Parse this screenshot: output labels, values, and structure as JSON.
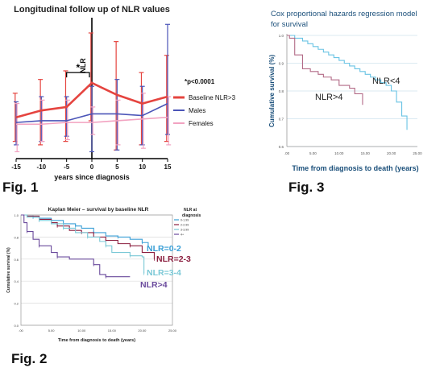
{
  "fig1": {
    "caption": "Fig. 1",
    "chart_data": {
      "type": "line",
      "title": "Longitudinal follow up of NLR values",
      "xlabel": "years since diagnosis",
      "ylabel": "NLR",
      "x": [
        -15,
        -10,
        -5,
        0,
        5,
        10,
        15
      ],
      "xticks": [
        "-15",
        "-10",
        "-5",
        "0",
        "5",
        "10",
        "15"
      ],
      "xlim": [
        -15,
        15
      ],
      "ylim": [
        0,
        8
      ],
      "series": [
        {
          "name": "Baseline NLR>3",
          "color": "#e5443f",
          "values": [
            2.4,
            2.8,
            3.0,
            4.4,
            3.7,
            3.2,
            3.6
          ],
          "lower": [
            1.0,
            0.8,
            1.0,
            2.2,
            0.5,
            0.8,
            1.0
          ],
          "upper": [
            3.8,
            4.6,
            5.1,
            7.3,
            6.8,
            5.0,
            6.0
          ]
        },
        {
          "name": "Males",
          "color": "#4b55b8",
          "values": [
            2.1,
            2.2,
            2.2,
            2.6,
            2.6,
            2.5,
            3.2
          ],
          "lower": [
            0.8,
            1.0,
            1.3,
            0.4,
            0.5,
            0.8,
            1.4
          ],
          "upper": [
            3.3,
            3.6,
            3.6,
            4.2,
            4.6,
            4.2,
            7.8
          ]
        },
        {
          "name": "Females",
          "color": "#f2a3c1",
          "values": [
            2.0,
            2.0,
            2.1,
            2.1,
            2.2,
            2.3,
            2.4
          ],
          "lower": [
            0.4,
            1.0,
            1.1,
            1.4,
            0.8,
            0.6,
            0.8
          ],
          "upper": [
            3.2,
            3.4,
            3.4,
            3.0,
            3.4,
            3.8,
            3.6
          ]
        }
      ],
      "annotations": [
        "*",
        "*p<0.0001"
      ]
    }
  },
  "fig3": {
    "caption": "Fig. 3",
    "chart_data": {
      "type": "line",
      "title": "Cox proportional hazards regression model for survival",
      "xlabel": "Time from diagnosis to death (years)",
      "ylabel": "Cumulative survival (%)",
      "xticks": [
        ".00",
        "5.00",
        "10.00",
        "15.00",
        "20.00",
        "25.00"
      ],
      "yticks": [
        "1.0",
        "0.9",
        "0.8",
        "0.7",
        "0.6"
      ],
      "xlim": [
        0,
        25
      ],
      "ylim": [
        0.6,
        1.0
      ],
      "series": [
        {
          "name": "NLR<4",
          "color": "#69c3e4",
          "points": [
            [
              0,
              1.0
            ],
            [
              1,
              1.0
            ],
            [
              1.5,
              0.99
            ],
            [
              3,
              0.98
            ],
            [
              4,
              0.97
            ],
            [
              5,
              0.96
            ],
            [
              6,
              0.95
            ],
            [
              7,
              0.94
            ],
            [
              8,
              0.93
            ],
            [
              9,
              0.92
            ],
            [
              10,
              0.91
            ],
            [
              11,
              0.9
            ],
            [
              12,
              0.89
            ],
            [
              13,
              0.88
            ],
            [
              14,
              0.87
            ],
            [
              15,
              0.86
            ],
            [
              16,
              0.85
            ],
            [
              17,
              0.84
            ],
            [
              18,
              0.83
            ],
            [
              19,
              0.82
            ],
            [
              20,
              0.8
            ],
            [
              21,
              0.76
            ],
            [
              22,
              0.71
            ],
            [
              23,
              0.66
            ]
          ]
        },
        {
          "name": "NLR>4",
          "color": "#b26a86",
          "points": [
            [
              0,
              1.0
            ],
            [
              0.5,
              0.99
            ],
            [
              1.5,
              0.93
            ],
            [
              3,
              0.88
            ],
            [
              4.5,
              0.87
            ],
            [
              6,
              0.86
            ],
            [
              7,
              0.85
            ],
            [
              8.5,
              0.84
            ],
            [
              10,
              0.82
            ],
            [
              12,
              0.81
            ],
            [
              13,
              0.79
            ],
            [
              14.5,
              0.75
            ]
          ]
        }
      ]
    }
  },
  "fig2": {
    "caption": "Fig. 2",
    "chart_data": {
      "type": "line",
      "title": "Kaplan Meier – survival by baseline NLR",
      "xlabel": "Time from diagnosis to death (years)",
      "ylabel": "Cumulative survival (%)",
      "legend_title": "NLR at diagnosis",
      "xticks": [
        ".00",
        "5.00",
        "10.00",
        "15.00",
        "20.00",
        "25.00"
      ],
      "yticks": [
        "1.0",
        "0.8",
        "0.6",
        "0.4",
        "0.2",
        "0.0"
      ],
      "xlim": [
        0,
        25
      ],
      "ylim": [
        0,
        1.0
      ],
      "series": [
        {
          "name": "NLR=0-2",
          "legend": "0-1.99",
          "color": "#3a9fd6",
          "points": [
            [
              0,
              1.0
            ],
            [
              1,
              0.99
            ],
            [
              2,
              0.98
            ],
            [
              3,
              0.97
            ],
            [
              5,
              0.95
            ],
            [
              7,
              0.92
            ],
            [
              9,
              0.9
            ],
            [
              10,
              0.88
            ],
            [
              12,
              0.84
            ],
            [
              14,
              0.81
            ],
            [
              16,
              0.8
            ],
            [
              18,
              0.78
            ],
            [
              20,
              0.75
            ],
            [
              21,
              0.72
            ]
          ]
        },
        {
          "name": "NLR=2-3",
          "legend": "2-2.99",
          "color": "#8b1e3f",
          "points": [
            [
              0,
              1.0
            ],
            [
              1,
              0.99
            ],
            [
              3,
              0.96
            ],
            [
              5,
              0.93
            ],
            [
              6,
              0.9
            ],
            [
              8,
              0.86
            ],
            [
              10,
              0.84
            ],
            [
              12,
              0.8
            ],
            [
              14,
              0.77
            ],
            [
              16,
              0.74
            ],
            [
              18,
              0.72
            ],
            [
              20,
              0.66
            ],
            [
              22,
              0.6
            ]
          ]
        },
        {
          "name": "NLR=3-4",
          "legend": "3-3.99",
          "color": "#7ac8d6",
          "points": [
            [
              0,
              1.0
            ],
            [
              1,
              0.98
            ],
            [
              3,
              0.95
            ],
            [
              5,
              0.92
            ],
            [
              7,
              0.88
            ],
            [
              9,
              0.84
            ],
            [
              11,
              0.8
            ],
            [
              13,
              0.76
            ],
            [
              14,
              0.72
            ],
            [
              15,
              0.66
            ],
            [
              18,
              0.63
            ],
            [
              20,
              0.62
            ],
            [
              20.3,
              0.47
            ]
          ]
        },
        {
          "name": "NLR>4",
          "legend": "4+",
          "color": "#6a4a9c",
          "points": [
            [
              0,
              1.0
            ],
            [
              0.5,
              0.93
            ],
            [
              1,
              0.85
            ],
            [
              2,
              0.78
            ],
            [
              3,
              0.72
            ],
            [
              5,
              0.66
            ],
            [
              6,
              0.62
            ],
            [
              8,
              0.6
            ],
            [
              12,
              0.55
            ],
            [
              13,
              0.46
            ],
            [
              14,
              0.44
            ],
            [
              18,
              0.44
            ]
          ]
        }
      ]
    }
  }
}
